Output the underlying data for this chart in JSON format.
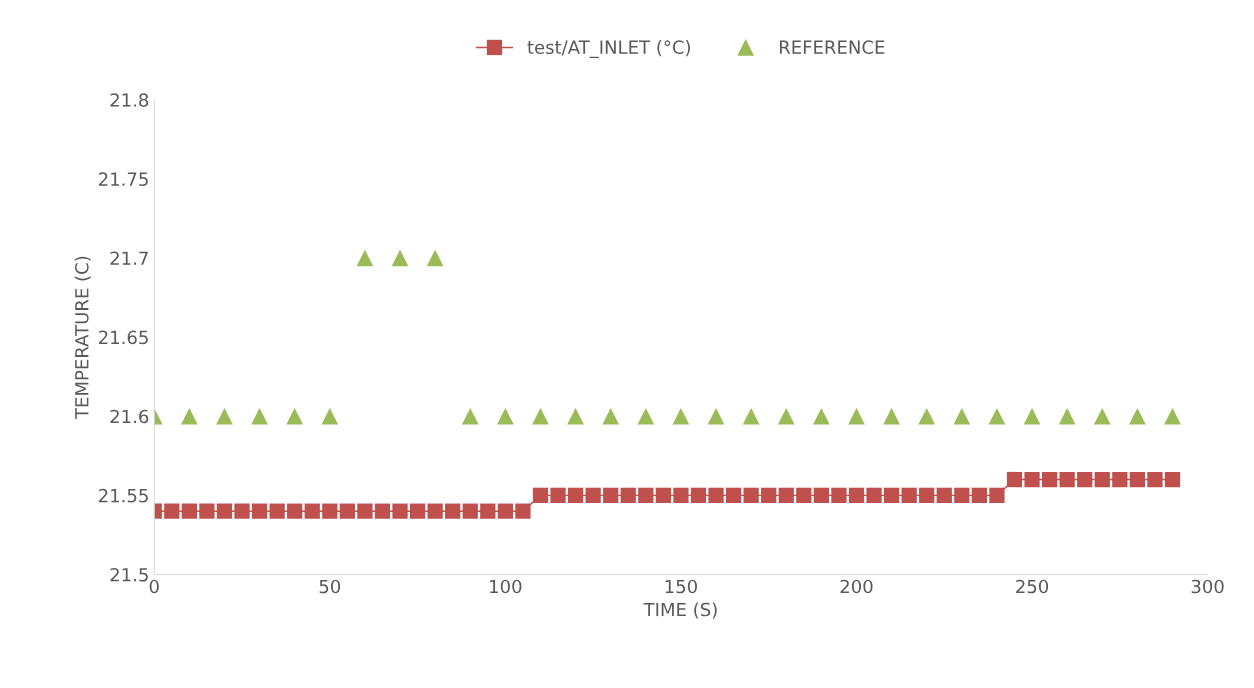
{
  "chart_data": {
    "type": "line",
    "xlabel": "TIME (S)",
    "ylabel": "TEMPERATURE (C)",
    "xlim": [
      0,
      300
    ],
    "xticks": [
      0,
      50,
      100,
      150,
      200,
      250,
      300
    ],
    "ylim": [
      21.5,
      21.8
    ],
    "yticks": [
      21.5,
      21.55,
      21.6,
      21.65,
      21.7,
      21.75,
      21.8
    ],
    "grid": false,
    "legend": "top",
    "series": [
      {
        "name": "test/AT_INLET (°C)",
        "color": "#c0504d",
        "marker": "square",
        "line_style": "solid",
        "x": [
          0,
          5,
          10,
          15,
          20,
          25,
          30,
          35,
          40,
          45,
          50,
          55,
          60,
          65,
          70,
          75,
          80,
          85,
          90,
          95,
          100,
          105,
          110,
          115,
          120,
          125,
          130,
          135,
          140,
          145,
          150,
          155,
          160,
          165,
          170,
          175,
          180,
          185,
          190,
          195,
          200,
          205,
          210,
          215,
          220,
          225,
          230,
          235,
          240,
          245,
          250,
          255,
          260,
          265,
          270,
          275,
          280,
          285,
          290
        ],
        "values": [
          21.54,
          21.54,
          21.54,
          21.54,
          21.54,
          21.54,
          21.54,
          21.54,
          21.54,
          21.54,
          21.54,
          21.54,
          21.54,
          21.54,
          21.54,
          21.54,
          21.54,
          21.54,
          21.54,
          21.54,
          21.54,
          21.54,
          21.55,
          21.55,
          21.55,
          21.55,
          21.55,
          21.55,
          21.55,
          21.55,
          21.55,
          21.55,
          21.55,
          21.55,
          21.55,
          21.55,
          21.55,
          21.55,
          21.55,
          21.55,
          21.55,
          21.55,
          21.55,
          21.55,
          21.55,
          21.55,
          21.55,
          21.55,
          21.55,
          21.56,
          21.56,
          21.56,
          21.56,
          21.56,
          21.56,
          21.56,
          21.56,
          21.56,
          21.56
        ]
      },
      {
        "name": "REFERENCE",
        "type": "scatter",
        "color": "#9bbb59",
        "marker": "triangle",
        "x": [
          0,
          10,
          20,
          30,
          40,
          50,
          60,
          70,
          80,
          90,
          100,
          110,
          120,
          130,
          140,
          150,
          160,
          170,
          180,
          190,
          200,
          210,
          220,
          230,
          240,
          250,
          260,
          270,
          280,
          290
        ],
        "values": [
          21.6,
          21.6,
          21.6,
          21.6,
          21.6,
          21.6,
          21.7,
          21.7,
          21.7,
          21.6,
          21.6,
          21.6,
          21.6,
          21.6,
          21.6,
          21.6,
          21.6,
          21.6,
          21.6,
          21.6,
          21.6,
          21.6,
          21.6,
          21.6,
          21.6,
          21.6,
          21.6,
          21.6,
          21.6,
          21.6
        ]
      }
    ]
  }
}
